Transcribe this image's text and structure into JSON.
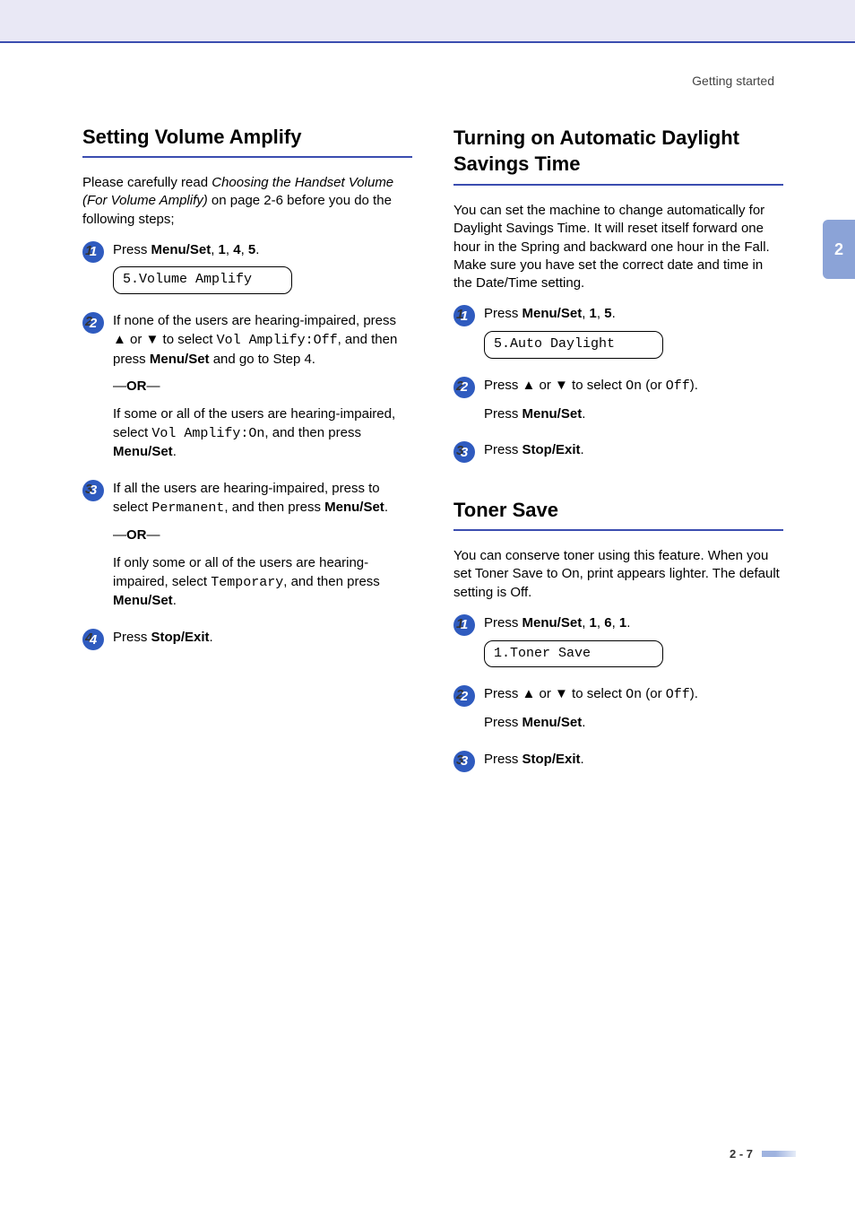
{
  "header": {
    "label": "Getting started"
  },
  "chapter_tab": "2",
  "page_number": "2 - 7",
  "colors": {
    "top_band_bg": "#e9e8f5",
    "accent_rule": "#3b4db0",
    "step_circle": "#2f5bbf",
    "chapter_tab_bg": "#8ba3d7",
    "footer_bar_from": "#9fb3df",
    "footer_bar_to": "#e6ecf8"
  },
  "left": {
    "section1": {
      "title": "Setting Volume Amplify",
      "intro_pre": "Please carefully read ",
      "intro_ital": "Choosing the Handset Volume (For Volume Amplify)",
      "intro_post": " on page 2-6 before you do the following steps;",
      "steps": [
        {
          "n": "1",
          "parts": [
            {
              "t": "Press "
            },
            {
              "t": "Menu/Set",
              "b": true
            },
            {
              "t": ", "
            },
            {
              "t": "1",
              "b": true
            },
            {
              "t": ", "
            },
            {
              "t": "4",
              "b": true
            },
            {
              "t": ", "
            },
            {
              "t": "5",
              "b": true
            },
            {
              "t": "."
            }
          ],
          "lcd": "5.Volume Amplify"
        },
        {
          "n": "2",
          "blocks": [
            {
              "parts": [
                {
                  "t": "If none of the users are hearing-impaired, press ▲ or ▼ to select "
                },
                {
                  "t": "Vol Amplify:Off",
                  "mono": true
                },
                {
                  "t": ", and then press "
                },
                {
                  "t": "Menu/Set",
                  "b": true
                },
                {
                  "t": " and go to Step 4."
                }
              ]
            },
            {
              "or": true,
              "text": "OR"
            },
            {
              "parts": [
                {
                  "t": "If some or all of the users are hearing-impaired, select "
                },
                {
                  "t": "Vol Amplify:On",
                  "mono": true
                },
                {
                  "t": ", and then press "
                },
                {
                  "t": "Menu/Set",
                  "b": true
                },
                {
                  "t": "."
                }
              ]
            }
          ]
        },
        {
          "n": "3",
          "blocks": [
            {
              "parts": [
                {
                  "t": "If all the users are hearing-impaired, press to select "
                },
                {
                  "t": "Permanent",
                  "mono": true
                },
                {
                  "t": ", and then press "
                },
                {
                  "t": "Menu/Set",
                  "b": true
                },
                {
                  "t": "."
                }
              ]
            },
            {
              "or": true,
              "text": "OR"
            },
            {
              "parts": [
                {
                  "t": "If only some or all of the users are hearing-impaired, select "
                },
                {
                  "t": "Temporary",
                  "mono": true
                },
                {
                  "t": ", and then press "
                },
                {
                  "t": "Menu/Set",
                  "b": true
                },
                {
                  "t": "."
                }
              ]
            }
          ]
        },
        {
          "n": "4",
          "parts": [
            {
              "t": "Press "
            },
            {
              "t": "Stop/Exit",
              "b": true
            },
            {
              "t": "."
            }
          ]
        }
      ]
    }
  },
  "right": {
    "section1": {
      "title": "Turning on Automatic Daylight Savings Time",
      "intro_parts": [
        {
          "t": "You can set the machine to change automatically for Daylight Savings Time. It will reset itself forward one hour in the Spring and backward one hour in the Fall. Make sure you have set the correct date and time in the "
        },
        {
          "t": "Date/Time",
          "mono": true
        },
        {
          "t": " setting."
        }
      ],
      "steps": [
        {
          "n": "1",
          "parts": [
            {
              "t": "Press "
            },
            {
              "t": "Menu/Set",
              "b": true
            },
            {
              "t": ", "
            },
            {
              "t": "1",
              "b": true
            },
            {
              "t": ", "
            },
            {
              "t": "5",
              "b": true
            },
            {
              "t": "."
            }
          ],
          "lcd": "5.Auto Daylight"
        },
        {
          "n": "2",
          "blocks": [
            {
              "parts": [
                {
                  "t": "Press ▲ or ▼ to select "
                },
                {
                  "t": "On",
                  "mono": true
                },
                {
                  "t": " (or "
                },
                {
                  "t": "Off",
                  "mono": true
                },
                {
                  "t": ")."
                }
              ]
            },
            {
              "parts": [
                {
                  "t": "Press "
                },
                {
                  "t": "Menu/Set",
                  "b": true
                },
                {
                  "t": "."
                }
              ]
            }
          ]
        },
        {
          "n": "3",
          "parts": [
            {
              "t": "Press "
            },
            {
              "t": "Stop/Exit",
              "b": true
            },
            {
              "t": "."
            }
          ]
        }
      ]
    },
    "section2": {
      "title": "Toner Save",
      "intro_parts": [
        {
          "t": "You can conserve toner using this feature. When you set Toner Save to "
        },
        {
          "t": "On",
          "mono": true
        },
        {
          "t": ", print appears lighter. The default setting is "
        },
        {
          "t": "Off",
          "mono": true
        },
        {
          "t": "."
        }
      ],
      "steps": [
        {
          "n": "1",
          "parts": [
            {
              "t": "Press "
            },
            {
              "t": "Menu/Set",
              "b": true
            },
            {
              "t": ", "
            },
            {
              "t": "1",
              "b": true
            },
            {
              "t": ", "
            },
            {
              "t": "6",
              "b": true
            },
            {
              "t": ", "
            },
            {
              "t": "1",
              "b": true
            },
            {
              "t": "."
            }
          ],
          "lcd": "1.Toner Save"
        },
        {
          "n": "2",
          "blocks": [
            {
              "parts": [
                {
                  "t": "Press ▲ or ▼ to select "
                },
                {
                  "t": "On",
                  "mono": true
                },
                {
                  "t": " (or "
                },
                {
                  "t": "Off",
                  "mono": true
                },
                {
                  "t": ")."
                }
              ]
            },
            {
              "parts": [
                {
                  "t": "Press "
                },
                {
                  "t": "Menu/Set",
                  "b": true
                },
                {
                  "t": "."
                }
              ]
            }
          ]
        },
        {
          "n": "3",
          "parts": [
            {
              "t": "Press "
            },
            {
              "t": "Stop/Exit",
              "b": true
            },
            {
              "t": "."
            }
          ]
        }
      ]
    }
  }
}
